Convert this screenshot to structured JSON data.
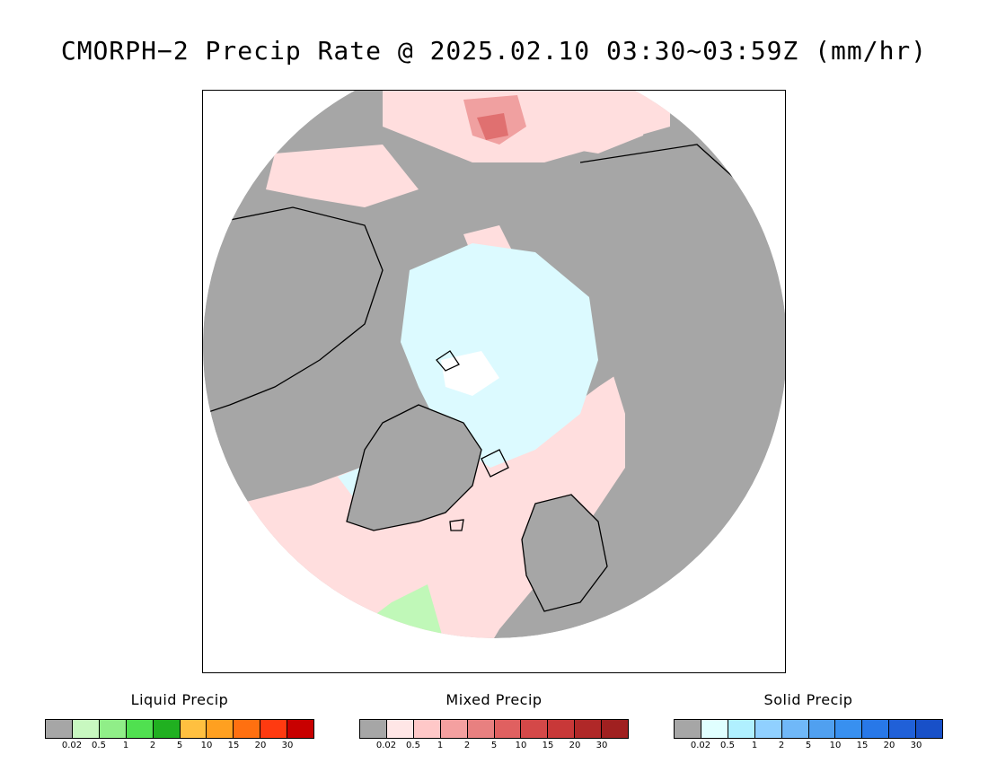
{
  "title": "CMORPH−2 Precip Rate @ 2025.02.10 03:30~03:59Z (mm/hr)",
  "legends": [
    {
      "key": "liquid",
      "title": "Liquid Precip",
      "colors": [
        "#a6a6a6",
        "#c8f8c0",
        "#90ee88",
        "#50e050",
        "#20b020",
        "#ffc040",
        "#ffa020",
        "#ff7010",
        "#ff3a10",
        "#c80000"
      ],
      "ticks": [
        "0.02",
        "0.5",
        "1",
        "2",
        "5",
        "10",
        "15",
        "20",
        "30"
      ]
    },
    {
      "key": "mixed",
      "title": "Mixed Precip",
      "colors": [
        "#a6a6a6",
        "#ffe6e6",
        "#ffc8c8",
        "#f4a0a0",
        "#e88080",
        "#e06060",
        "#d44848",
        "#c83838",
        "#b02828",
        "#a02020"
      ],
      "ticks": [
        "0.02",
        "0.5",
        "1",
        "2",
        "5",
        "10",
        "15",
        "20",
        "30"
      ]
    },
    {
      "key": "solid",
      "title": "Solid Precip",
      "colors": [
        "#a6a6a6",
        "#e0ffff",
        "#b0f0ff",
        "#90d0ff",
        "#70b8f8",
        "#50a0f0",
        "#3890f0",
        "#2878e8",
        "#2060d8",
        "#1850c8"
      ],
      "ticks": [
        "0.02",
        "0.5",
        "1",
        "2",
        "5",
        "10",
        "15",
        "20",
        "30"
      ]
    }
  ],
  "map": {
    "no_precip_color": "#a6a6a6",
    "mixed_light_color": "#ffdede",
    "mixed_mid_color": "#f0a0a0",
    "mixed_heavy_color": "#e07070",
    "solid_light_color": "#dcfaff",
    "solid_mid_color": "#ffffff",
    "liquid_light_color": "#c0f8b8",
    "coastline_color": "#000000"
  }
}
